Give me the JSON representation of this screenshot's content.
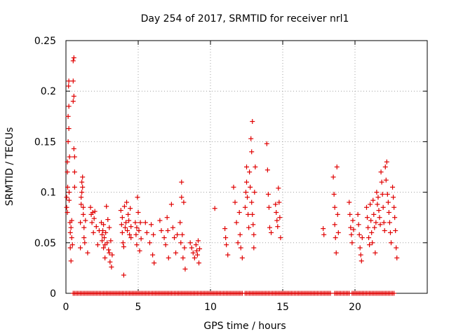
{
  "chart_data": {
    "type": "scatter",
    "title": "Day 254 of 2017, SRMTID for receiver nrl1",
    "xlabel": "GPS time / hours",
    "ylabel": "SRMTID / TECUs",
    "xlim": [
      0,
      25
    ],
    "ylim": [
      0,
      0.25
    ],
    "x_ticks": [
      0,
      5,
      10,
      15,
      20
    ],
    "x_tick_labels": [
      "0",
      "5",
      "10",
      "15",
      "20"
    ],
    "y_ticks": [
      0,
      0.05,
      0.1,
      0.15,
      0.2,
      0.25
    ],
    "y_tick_labels": [
      "0",
      "0.05",
      "0.1",
      "0.15",
      "0.2",
      "0.25"
    ],
    "grid": true,
    "marker": "plus",
    "color": "#e00000",
    "series": [
      {
        "name": "SRMTID",
        "points": [
          [
            0.05,
            0.085
          ],
          [
            0.05,
            0.095
          ],
          [
            0.1,
            0.13
          ],
          [
            0.1,
            0.12
          ],
          [
            0.1,
            0.08
          ],
          [
            0.12,
            0.105
          ],
          [
            0.15,
            0.175
          ],
          [
            0.15,
            0.15
          ],
          [
            0.18,
            0.205
          ],
          [
            0.2,
            0.21
          ],
          [
            0.2,
            0.185
          ],
          [
            0.2,
            0.163
          ],
          [
            0.22,
            0.1
          ],
          [
            0.22,
            0.092
          ],
          [
            0.25,
            0.135
          ],
          [
            0.28,
            0.07
          ],
          [
            0.3,
            0.06
          ],
          [
            0.3,
            0.045
          ],
          [
            0.35,
            0.065
          ],
          [
            0.35,
            0.032
          ],
          [
            0.4,
            0.072
          ],
          [
            0.4,
            0.055
          ],
          [
            0.45,
            0.048
          ],
          [
            0.5,
            0.23
          ],
          [
            0.5,
            0.21
          ],
          [
            0.5,
            0.19
          ],
          [
            0.55,
            0.233
          ],
          [
            0.55,
            0.195
          ],
          [
            0.55,
            0.143
          ],
          [
            0.6,
            0.135
          ],
          [
            0.6,
            0.12
          ],
          [
            0.6,
            0.105
          ],
          [
            1.0,
            0.045
          ],
          [
            1.0,
            0.07
          ],
          [
            1.05,
            0.088
          ],
          [
            1.05,
            0.095
          ],
          [
            1.1,
            0.11
          ],
          [
            1.1,
            0.1
          ],
          [
            1.15,
            0.115
          ],
          [
            1.15,
            0.105
          ],
          [
            1.2,
            0.085
          ],
          [
            1.2,
            0.078
          ],
          [
            1.25,
            0.065
          ],
          [
            1.25,
            0.055
          ],
          [
            1.3,
            0.05
          ],
          [
            1.35,
            0.072
          ],
          [
            1.5,
            0.04
          ],
          [
            1.7,
            0.085
          ],
          [
            1.75,
            0.078
          ],
          [
            1.8,
            0.07
          ],
          [
            1.85,
            0.08
          ],
          [
            1.9,
            0.06
          ],
          [
            1.95,
            0.074
          ],
          [
            2.0,
            0.081
          ],
          [
            2.1,
            0.066
          ],
          [
            2.2,
            0.048
          ],
          [
            2.3,
            0.062
          ],
          [
            2.45,
            0.07
          ],
          [
            2.5,
            0.058
          ],
          [
            2.5,
            0.052
          ],
          [
            2.55,
            0.062
          ],
          [
            2.6,
            0.045
          ],
          [
            2.6,
            0.068
          ],
          [
            2.65,
            0.055
          ],
          [
            2.7,
            0.048
          ],
          [
            2.7,
            0.035
          ],
          [
            2.75,
            0.06
          ],
          [
            2.8,
            0.086
          ],
          [
            2.85,
            0.05
          ],
          [
            2.9,
            0.073
          ],
          [
            2.95,
            0.043
          ],
          [
            3.0,
            0.04
          ],
          [
            3.0,
            0.065
          ],
          [
            3.05,
            0.031
          ],
          [
            3.1,
            0.052
          ],
          [
            3.15,
            0.026
          ],
          [
            3.2,
            0.038
          ],
          [
            3.8,
            0.082
          ],
          [
            3.85,
            0.068
          ],
          [
            3.9,
            0.075
          ],
          [
            3.9,
            0.06
          ],
          [
            3.95,
            0.05
          ],
          [
            4.0,
            0.046
          ],
          [
            4.0,
            0.018
          ],
          [
            4.05,
            0.086
          ],
          [
            4.1,
            0.065
          ],
          [
            4.15,
            0.07
          ],
          [
            4.2,
            0.09
          ],
          [
            4.25,
            0.062
          ],
          [
            4.3,
            0.078
          ],
          [
            4.35,
            0.072
          ],
          [
            4.4,
            0.058
          ],
          [
            4.45,
            0.084
          ],
          [
            4.5,
            0.066
          ],
          [
            4.5,
            0.055
          ],
          [
            4.8,
            0.07
          ],
          [
            4.85,
            0.058
          ],
          [
            4.9,
            0.065
          ],
          [
            4.9,
            0.048
          ],
          [
            4.95,
            0.095
          ],
          [
            5.0,
            0.08
          ],
          [
            5.05,
            0.062
          ],
          [
            5.1,
            0.042
          ],
          [
            5.15,
            0.07
          ],
          [
            5.2,
            0.054
          ],
          [
            5.5,
            0.07
          ],
          [
            5.6,
            0.06
          ],
          [
            5.8,
            0.05
          ],
          [
            5.9,
            0.068
          ],
          [
            6.0,
            0.038
          ],
          [
            6.05,
            0.058
          ],
          [
            6.1,
            0.03
          ],
          [
            6.5,
            0.072
          ],
          [
            6.6,
            0.062
          ],
          [
            6.8,
            0.055
          ],
          [
            6.9,
            0.048
          ],
          [
            7.0,
            0.075
          ],
          [
            7.05,
            0.062
          ],
          [
            7.1,
            0.035
          ],
          [
            7.3,
            0.088
          ],
          [
            7.4,
            0.065
          ],
          [
            7.5,
            0.055
          ],
          [
            7.6,
            0.04
          ],
          [
            7.7,
            0.058
          ],
          [
            7.9,
            0.07
          ],
          [
            7.95,
            0.05
          ],
          [
            8.0,
            0.11
          ],
          [
            8.0,
            0.095
          ],
          [
            8.05,
            0.058
          ],
          [
            8.1,
            0.035
          ],
          [
            8.15,
            0.09
          ],
          [
            8.2,
            0.045
          ],
          [
            8.25,
            0.024
          ],
          [
            8.6,
            0.05
          ],
          [
            8.7,
            0.045
          ],
          [
            8.8,
            0.04
          ],
          [
            8.9,
            0.035
          ],
          [
            9.0,
            0.048
          ],
          [
            9.05,
            0.042
          ],
          [
            9.1,
            0.038
          ],
          [
            9.15,
            0.052
          ],
          [
            9.2,
            0.03
          ],
          [
            9.25,
            0.044
          ],
          [
            10.3,
            0.084
          ],
          [
            11.0,
            0.064
          ],
          [
            11.05,
            0.055
          ],
          [
            11.1,
            0.048
          ],
          [
            11.2,
            0.038
          ],
          [
            11.6,
            0.105
          ],
          [
            11.7,
            0.09
          ],
          [
            11.8,
            0.07
          ],
          [
            11.9,
            0.05
          ],
          [
            12.0,
            0.08
          ],
          [
            12.05,
            0.058
          ],
          [
            12.1,
            0.045
          ],
          [
            12.2,
            0.035
          ],
          [
            12.4,
            0.085
          ],
          [
            12.45,
            0.1
          ],
          [
            12.5,
            0.125
          ],
          [
            12.5,
            0.11
          ],
          [
            12.55,
            0.095
          ],
          [
            12.6,
            0.078
          ],
          [
            12.65,
            0.065
          ],
          [
            12.7,
            0.12
          ],
          [
            12.75,
            0.105
          ],
          [
            12.8,
            0.153
          ],
          [
            12.85,
            0.14
          ],
          [
            12.85,
            0.09
          ],
          [
            12.9,
            0.17
          ],
          [
            12.9,
            0.078
          ],
          [
            12.95,
            0.068
          ],
          [
            13.0,
            0.045
          ],
          [
            13.0,
            0.058
          ],
          [
            13.05,
            0.1
          ],
          [
            13.1,
            0.125
          ],
          [
            13.9,
            0.148
          ],
          [
            13.95,
            0.122
          ],
          [
            14.0,
            0.098
          ],
          [
            14.05,
            0.085
          ],
          [
            14.1,
            0.065
          ],
          [
            14.2,
            0.06
          ],
          [
            14.5,
            0.088
          ],
          [
            14.55,
            0.08
          ],
          [
            14.6,
            0.072
          ],
          [
            14.65,
            0.066
          ],
          [
            14.7,
            0.104
          ],
          [
            14.75,
            0.09
          ],
          [
            14.8,
            0.075
          ],
          [
            14.85,
            0.055
          ],
          [
            17.8,
            0.064
          ],
          [
            17.85,
            0.058
          ],
          [
            18.5,
            0.115
          ],
          [
            18.55,
            0.098
          ],
          [
            18.6,
            0.085
          ],
          [
            18.6,
            0.068
          ],
          [
            18.65,
            0.055
          ],
          [
            18.7,
            0.04
          ],
          [
            18.75,
            0.125
          ],
          [
            18.8,
            0.078
          ],
          [
            18.85,
            0.06
          ],
          [
            19.6,
            0.09
          ],
          [
            19.65,
            0.078
          ],
          [
            19.7,
            0.065
          ],
          [
            19.75,
            0.058
          ],
          [
            19.8,
            0.05
          ],
          [
            19.85,
            0.072
          ],
          [
            19.9,
            0.063
          ],
          [
            20.2,
            0.078
          ],
          [
            20.25,
            0.068
          ],
          [
            20.3,
            0.058
          ],
          [
            20.35,
            0.045
          ],
          [
            20.4,
            0.038
          ],
          [
            20.45,
            0.032
          ],
          [
            20.5,
            0.055
          ],
          [
            20.8,
            0.085
          ],
          [
            20.85,
            0.075
          ],
          [
            20.9,
            0.065
          ],
          [
            20.95,
            0.055
          ],
          [
            21.0,
            0.048
          ],
          [
            21.05,
            0.088
          ],
          [
            21.1,
            0.072
          ],
          [
            21.15,
            0.06
          ],
          [
            21.2,
            0.05
          ],
          [
            21.25,
            0.092
          ],
          [
            21.3,
            0.078
          ],
          [
            21.35,
            0.065
          ],
          [
            21.4,
            0.04
          ],
          [
            21.45,
            0.07
          ],
          [
            21.5,
            0.1
          ],
          [
            21.55,
            0.088
          ],
          [
            21.6,
            0.095
          ],
          [
            21.65,
            0.082
          ],
          [
            21.7,
            0.075
          ],
          [
            21.75,
            0.068
          ],
          [
            21.8,
            0.12
          ],
          [
            21.85,
            0.11
          ],
          [
            21.9,
            0.098
          ],
          [
            21.95,
            0.085
          ],
          [
            22.0,
            0.07
          ],
          [
            22.05,
            0.062
          ],
          [
            22.1,
            0.125
          ],
          [
            22.15,
            0.112
          ],
          [
            22.2,
            0.13
          ],
          [
            22.25,
            0.098
          ],
          [
            22.3,
            0.09
          ],
          [
            22.35,
            0.08
          ],
          [
            22.4,
            0.07
          ],
          [
            22.45,
            0.06
          ],
          [
            22.5,
            0.05
          ],
          [
            22.6,
            0.105
          ],
          [
            22.65,
            0.095
          ],
          [
            22.7,
            0.085
          ],
          [
            22.75,
            0.075
          ],
          [
            22.8,
            0.062
          ],
          [
            22.85,
            0.045
          ],
          [
            22.9,
            0.035
          ]
        ],
        "zero_runs": [
          [
            0.5,
            9.2
          ],
          [
            9.3,
            12.2
          ],
          [
            12.4,
            18.3
          ],
          [
            18.6,
            19.6
          ],
          [
            19.8,
            22.7
          ]
        ]
      }
    ]
  }
}
